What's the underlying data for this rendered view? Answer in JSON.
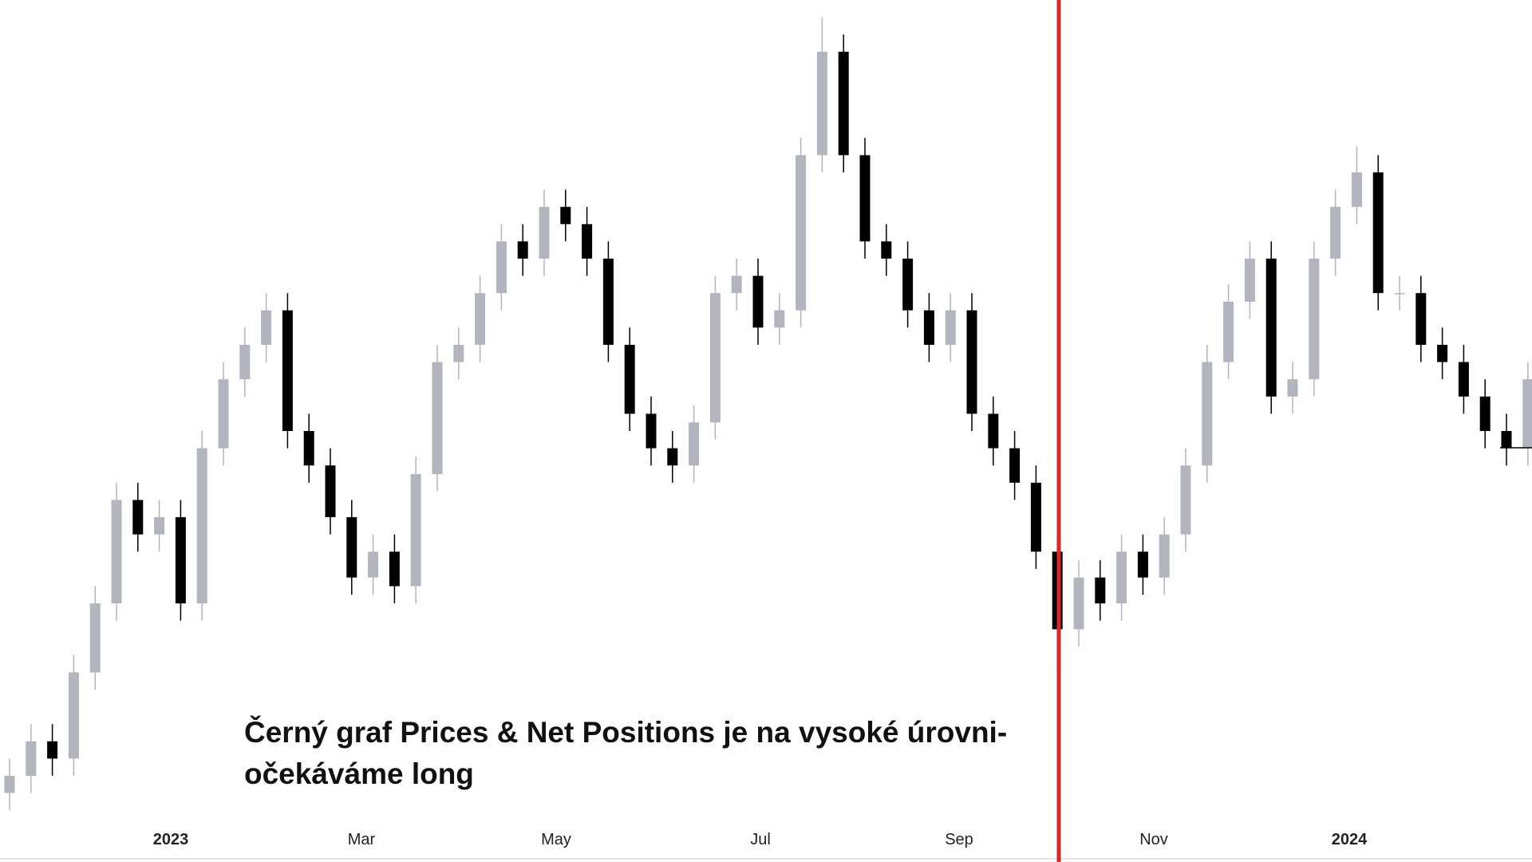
{
  "chart_data": {
    "type": "candlestick",
    "annotation": [
      "Černý graf Prices & Net Positions je na vysoké úrovni-",
      "očekáváme long"
    ],
    "x_labels": [
      "2023",
      "Mar",
      "May",
      "Jul",
      "Sep",
      "Nov",
      "2024"
    ],
    "ylim": [
      0,
      100
    ],
    "up_color": "#b2b5be",
    "down_color": "#000000",
    "marker_color": "#d62a2a",
    "open": [
      8,
      10,
      14,
      12,
      22,
      30,
      42,
      38,
      40,
      30,
      48,
      56,
      60,
      64,
      50,
      46,
      40,
      33,
      36,
      32,
      45,
      58,
      60,
      66,
      72,
      70,
      76,
      74,
      70,
      60,
      52,
      48,
      46,
      51,
      66,
      68,
      62,
      64,
      82,
      94,
      82,
      72,
      70,
      64,
      60,
      64,
      52,
      48,
      44,
      36,
      27,
      33,
      30,
      36,
      33,
      38,
      46,
      58,
      65,
      70,
      54,
      56,
      70,
      76,
      80,
      66,
      66,
      60,
      58,
      54,
      50,
      48
    ],
    "high": [
      12,
      16,
      16,
      24,
      32,
      44,
      44,
      42,
      42,
      50,
      58,
      62,
      66,
      66,
      52,
      48,
      42,
      38,
      38,
      47,
      60,
      62,
      68,
      74,
      74,
      78,
      78,
      76,
      72,
      62,
      54,
      50,
      53,
      68,
      70,
      70,
      66,
      84,
      98,
      96,
      84,
      74,
      72,
      66,
      66,
      66,
      54,
      50,
      46,
      38,
      35,
      35,
      38,
      38,
      40,
      48,
      60,
      67,
      72,
      72,
      58,
      72,
      78,
      83,
      82,
      68,
      68,
      62,
      60,
      56,
      52,
      58
    ],
    "low": [
      6,
      8,
      10,
      10,
      20,
      28,
      36,
      36,
      28,
      28,
      46,
      54,
      58,
      48,
      44,
      38,
      31,
      31,
      30,
      30,
      43,
      56,
      58,
      64,
      68,
      68,
      72,
      68,
      58,
      50,
      46,
      44,
      44,
      49,
      64,
      60,
      60,
      62,
      80,
      80,
      70,
      68,
      62,
      58,
      58,
      50,
      46,
      42,
      34,
      22,
      25,
      28,
      28,
      31,
      31,
      36,
      44,
      56,
      63,
      52,
      52,
      54,
      68,
      74,
      64,
      64,
      58,
      56,
      52,
      48,
      46,
      46
    ],
    "close": [
      10,
      14,
      12,
      22,
      30,
      42,
      38,
      40,
      30,
      48,
      56,
      60,
      64,
      50,
      46,
      40,
      33,
      36,
      32,
      45,
      58,
      60,
      66,
      72,
      70,
      76,
      74,
      70,
      60,
      52,
      48,
      46,
      51,
      66,
      68,
      62,
      64,
      82,
      94,
      82,
      72,
      70,
      64,
      60,
      64,
      52,
      48,
      44,
      36,
      27,
      33,
      30,
      36,
      33,
      38,
      46,
      58,
      65,
      70,
      54,
      56,
      70,
      76,
      80,
      66,
      66,
      60,
      58,
      54,
      50,
      48,
      56
    ]
  }
}
